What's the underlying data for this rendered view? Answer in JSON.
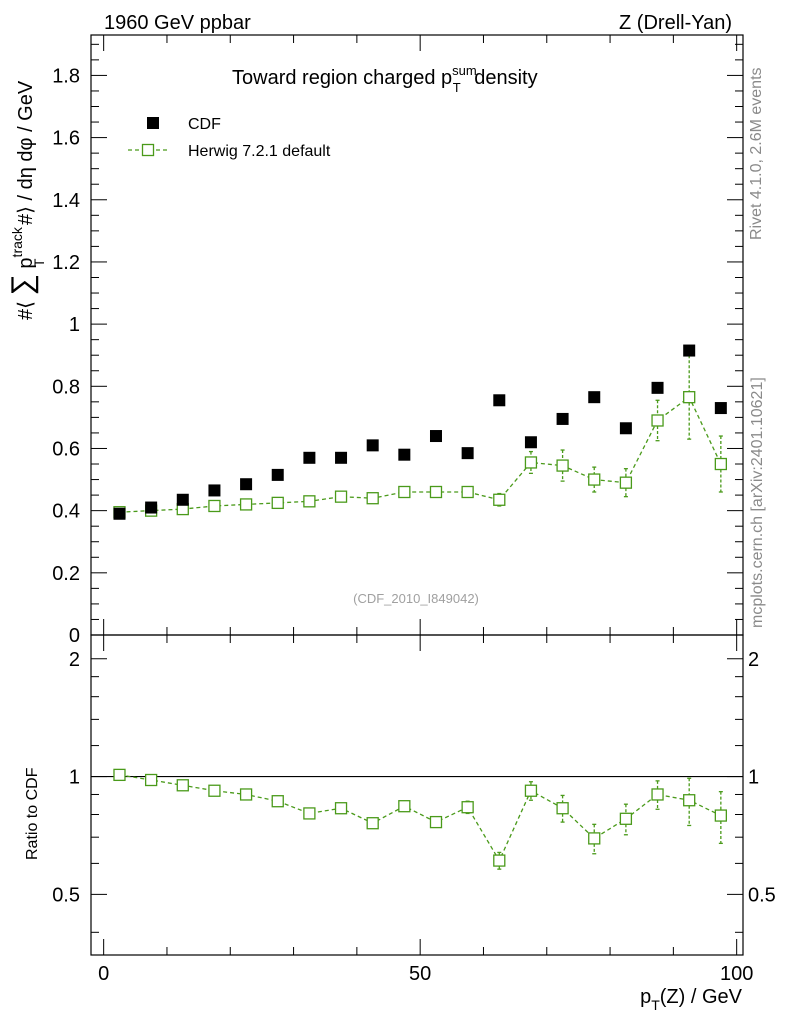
{
  "header": {
    "left": "1960 GeV ppbar",
    "right": "Z (Drell-Yan)"
  },
  "side_labels": {
    "rivet": "Rivet 4.1.0,  2.6M events",
    "mcplots": "mcplots.cern.ch [arXiv:2401.10621]"
  },
  "chart_data": [
    {
      "type": "scatter",
      "panel": "main",
      "title": "Toward region charged p_T^sum density",
      "title_parts": {
        "main": "Toward region charged p",
        "sub": "T",
        "sup": "sum",
        "tail": " density"
      },
      "ylabel": "#⟨ ∑ p_T^track #⟩ / dη dφ / GeV",
      "ylabel_parts": {
        "pre": "#⟨ ",
        "sum": "∑",
        "p": " p",
        "sub": "T",
        "sup": "track",
        "post": " #⟩ / dη dφ / GeV"
      },
      "xlabel": "",
      "xlim": [
        -2,
        101
      ],
      "ylim": [
        0,
        1.93
      ],
      "yticks": [
        "0",
        "0.2",
        "0.4",
        "0.6",
        "0.8",
        "1",
        "1.2",
        "1.4",
        "1.6",
        "1.8"
      ],
      "ytick_values": [
        0,
        0.2,
        0.4,
        0.6,
        0.8,
        1.0,
        1.2,
        1.4,
        1.6,
        1.8
      ],
      "watermark": "(CDF_2010_I849042)",
      "legend": {
        "placement": "top-left",
        "entries": [
          "CDF",
          "Herwig 7.2.1 default"
        ]
      },
      "series": [
        {
          "name": "CDF",
          "style": "filled-square",
          "color": "#000000",
          "x": [
            2.5,
            7.5,
            12.5,
            17.5,
            22.5,
            27.5,
            32.5,
            37.5,
            42.5,
            47.5,
            52.5,
            57.5,
            62.5,
            67.5,
            72.5,
            77.5,
            82.5,
            87.5,
            92.5,
            97.5
          ],
          "y": [
            0.39,
            0.41,
            0.435,
            0.465,
            0.485,
            0.515,
            0.57,
            0.57,
            0.61,
            0.58,
            0.64,
            0.585,
            0.755,
            0.62,
            0.695,
            0.765,
            0.665,
            0.795,
            0.915,
            0.73
          ]
        },
        {
          "name": "Herwig 7.2.1 default",
          "style": "open-square-dashed",
          "color": "#4a9a1a",
          "x": [
            2.5,
            7.5,
            12.5,
            17.5,
            22.5,
            27.5,
            32.5,
            37.5,
            42.5,
            47.5,
            52.5,
            57.5,
            62.5,
            67.5,
            72.5,
            77.5,
            82.5,
            87.5,
            92.5,
            97.5
          ],
          "y": [
            0.395,
            0.4,
            0.405,
            0.415,
            0.42,
            0.425,
            0.43,
            0.445,
            0.44,
            0.46,
            0.46,
            0.46,
            0.435,
            0.555,
            0.545,
            0.5,
            0.49,
            0.69,
            0.765,
            0.55
          ],
          "yerr": [
            0.005,
            0.005,
            0.006,
            0.006,
            0.007,
            0.007,
            0.008,
            0.009,
            0.01,
            0.011,
            0.012,
            0.018,
            0.02,
            0.035,
            0.05,
            0.04,
            0.045,
            0.065,
            0.135,
            0.09
          ]
        }
      ]
    },
    {
      "type": "line",
      "panel": "ratio",
      "ylabel": "Ratio to CDF",
      "xlabel": "p_T(Z) / GeV",
      "xlabel_parts": {
        "p": "p",
        "sub": "T",
        "rest": "(Z) / GeV"
      },
      "xlim": [
        -2,
        101
      ],
      "ylim": [
        0.35,
        2.3
      ],
      "xticks": [
        "0",
        "50",
        "100"
      ],
      "xtick_values": [
        0,
        50,
        100
      ],
      "yticks": [
        "0.5",
        "1",
        "2"
      ],
      "ytick_values": [
        0.5,
        1,
        2
      ],
      "reference_line": 1,
      "series": [
        {
          "name": "Herwig 7.2.1 default",
          "color": "#4a9a1a",
          "x": [
            2.5,
            7.5,
            12.5,
            17.5,
            22.5,
            27.5,
            32.5,
            37.5,
            42.5,
            47.5,
            52.5,
            57.5,
            62.5,
            67.5,
            72.5,
            77.5,
            82.5,
            87.5,
            92.5,
            97.5
          ],
          "y": [
            1.01,
            0.98,
            0.95,
            0.92,
            0.9,
            0.865,
            0.805,
            0.83,
            0.76,
            0.84,
            0.765,
            0.835,
            0.61,
            0.92,
            0.83,
            0.695,
            0.78,
            0.9,
            0.87,
            0.795
          ],
          "yerr": [
            0.01,
            0.01,
            0.012,
            0.012,
            0.014,
            0.015,
            0.016,
            0.018,
            0.02,
            0.022,
            0.025,
            0.03,
            0.03,
            0.05,
            0.065,
            0.06,
            0.07,
            0.075,
            0.12,
            0.12
          ]
        }
      ]
    }
  ]
}
